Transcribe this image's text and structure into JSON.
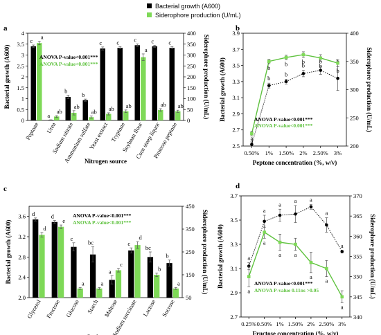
{
  "legend": {
    "items": [
      {
        "label": "Bacterial growth (A600)",
        "color": "#000000"
      },
      {
        "label": "Siderophore production (U/mL)",
        "color": "#7ed957"
      }
    ]
  },
  "colors": {
    "growth": "#000000",
    "sidero": "#7ed957",
    "growth_line": "#000000",
    "sidero_line": "#5fc23f"
  },
  "chart_data": [
    {
      "panel": "a",
      "type": "bar",
      "xlabel": "Nitrogen source",
      "ylabel_left": "Bacterial growth (A600)",
      "ylabel_right": "Siderophore production (U/mL)",
      "ylim_left": [
        0,
        4
      ],
      "yticks_left": [
        0,
        0.5,
        1,
        1.5,
        2,
        2.5,
        3,
        3.5,
        4
      ],
      "ylim_right": [
        0,
        400
      ],
      "yticks_right": [
        0,
        50,
        100,
        150,
        200,
        250,
        300,
        350,
        400
      ],
      "categories": [
        "Peptone",
        "Urea",
        "Sodium nitrate",
        "Ammonium sulfate",
        "Yeast extract",
        "Tryptone",
        "Soybean flour",
        "Corn steep liquor",
        "Proteose peptone"
      ],
      "series": [
        {
          "name": "Bacterial growth (A600)",
          "values": [
            3.4,
            0.02,
            1.08,
            0.93,
            3.3,
            3.33,
            3.45,
            3.4,
            3.33
          ],
          "errors": [
            0.06,
            0.01,
            0.08,
            0.05,
            0.07,
            0.05,
            0.06,
            0.05,
            0.05
          ],
          "letters": [
            "c",
            "a",
            "b",
            "b",
            "c",
            "c",
            "c",
            "c",
            "c"
          ]
        },
        {
          "name": "Siderophore production (U/mL)",
          "values": [
            355,
            18,
            35,
            15,
            30,
            42,
            290,
            48,
            42
          ],
          "errors": [
            8,
            4,
            10,
            5,
            5,
            6,
            15,
            6,
            5
          ],
          "letters": [
            "a",
            "ab",
            "ab",
            "ab",
            "ab",
            "ab",
            "a",
            "ab",
            "ab"
          ]
        }
      ],
      "anova": [
        "ANOVA P-value<0.001***",
        "ANOVA P-value<0.001***"
      ]
    },
    {
      "panel": "b",
      "type": "line",
      "xlabel": "Peptone  concentration (%, w/v)",
      "ylabel_left": "Bacterial growth (A600)",
      "ylabel_right": "Siderophore production (U/mL)",
      "x": [
        "0.50%",
        "1%",
        "1.50%",
        "2%",
        "2.50%",
        "3%"
      ],
      "ylim_left": [
        2.5,
        3.9
      ],
      "yticks_left": [
        2.5,
        2.7,
        2.9,
        3.1,
        3.3,
        3.5,
        3.7,
        3.9
      ],
      "ylim_right": [
        200,
        400
      ],
      "yticks_right": [
        200,
        250,
        300,
        350,
        400
      ],
      "series": [
        {
          "name": "Bacterial growth (A600)",
          "values": [
            2.52,
            3.25,
            3.3,
            3.4,
            3.44,
            3.34
          ],
          "errors": [
            0.02,
            0.03,
            0.03,
            0.04,
            0.05,
            0.15
          ],
          "letters": [
            "a",
            "b",
            "b",
            "b",
            "b",
            "b"
          ]
        },
        {
          "name": "Siderophore production (U/mL)",
          "values": [
            222,
            350,
            357,
            362,
            356,
            347
          ],
          "errors": [
            4,
            4,
            4,
            5,
            6,
            6
          ],
          "letters": [
            "a",
            "b",
            "b",
            "b",
            "b",
            "b"
          ]
        }
      ],
      "anova": [
        "ANOVA P-value<0.001***",
        "ANOVA P-value<0.001***"
      ]
    },
    {
      "panel": "c",
      "type": "bar",
      "xlabel": "Carbon source",
      "ylabel_left": "Bacterial growth (A600)",
      "ylabel_right": "Siderophore production (U/mL)",
      "ylim_left": [
        2.0,
        3.8
      ],
      "yticks_left": [
        2.0,
        2.4,
        2.8,
        3.2,
        3.6
      ],
      "ylim_right": [
        50,
        450
      ],
      "yticks_right": [
        50,
        150,
        250,
        350,
        450
      ],
      "categories": [
        "Glycerol",
        "Fructose",
        "Glucose",
        "Starch",
        "Maltose",
        "Sodium succinate",
        "Lactose",
        "Sucrose"
      ],
      "series": [
        {
          "name": "Bacterial growth (A600)",
          "values": [
            3.54,
            3.49,
            3.0,
            2.85,
            2.35,
            2.93,
            2.8,
            2.68
          ],
          "errors": [
            0.03,
            0.03,
            0.08,
            0.15,
            0.08,
            0.05,
            0.1,
            0.06
          ],
          "letters": [
            "d",
            "d",
            "c",
            "bc",
            "a",
            "c",
            "bc",
            "b"
          ]
        },
        {
          "name": "Siderophore production (U/mL)",
          "values": [
            325,
            360,
            90,
            90,
            170,
            280,
            150,
            90
          ],
          "errors": [
            10,
            8,
            4,
            4,
            8,
            15,
            8,
            4
          ],
          "letters": [
            "d",
            "e",
            "a",
            "a",
            "c",
            "d",
            "b",
            "a"
          ]
        }
      ],
      "anova": [
        "ANOVA P-value<0.001***",
        "ANOVA P-value<0.001***"
      ]
    },
    {
      "panel": "d",
      "type": "line",
      "xlabel": "Fructose concentration (%, w/v)",
      "ylabel_left": "Bacterial growth (A600)",
      "ylabel_right": "Siderophore production (U/mL)",
      "x": [
        "0.25%",
        "0.50%",
        "1%",
        "1.50%",
        "2%",
        "2.50%",
        "3%"
      ],
      "ylim_left": [
        2.7,
        3.7
      ],
      "yticks_left": [
        2.7,
        2.9,
        3.1,
        3.3,
        3.5,
        3.7
      ],
      "ylim_right": [
        340,
        370
      ],
      "yticks_right": [
        340,
        345,
        350,
        355,
        360,
        365,
        370
      ],
      "series": [
        {
          "name": "Bacterial growth (A600)",
          "values": [
            3.12,
            3.49,
            3.54,
            3.55,
            3.61,
            3.46,
            3.24
          ],
          "errors": [
            0.03,
            0.05,
            0.05,
            0.07,
            0.02,
            0.06,
            0.01
          ],
          "letters": [
            "a",
            "a",
            "a",
            "a",
            "a",
            "a",
            "a"
          ]
        },
        {
          "name": "Siderophore production (U/mL)",
          "values": [
            350,
            361,
            358.5,
            358,
            353.5,
            352,
            345
          ],
          "errors": [
            2.5,
            1.5,
            2,
            1.5,
            2.5,
            2,
            1.5
          ],
          "letters": [
            "a",
            "a",
            "a",
            "a",
            "a",
            "a",
            "a"
          ]
        }
      ],
      "anova": [
        "ANOVA P-value<0.001***",
        "ANOVA P-value 0.11ns >0.05"
      ]
    }
  ]
}
